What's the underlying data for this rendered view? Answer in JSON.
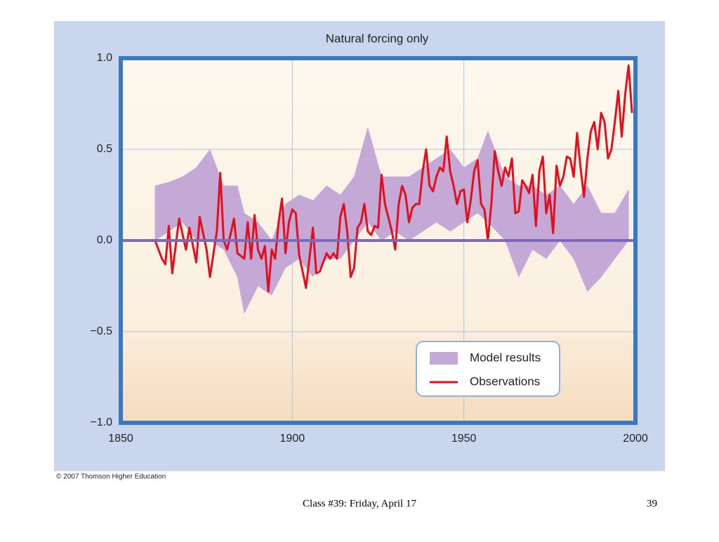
{
  "chart_data": {
    "type": "line",
    "title": "Natural forcing only",
    "xlim": [
      1850,
      2000
    ],
    "xticks": [
      1850,
      1900,
      1950,
      2000
    ],
    "ylim": [
      -1.0,
      1.0
    ],
    "yticks": [
      {
        "value": -1.0,
        "label": "−1.0"
      },
      {
        "value": -0.5,
        "label": "−0.5"
      },
      {
        "value": 0,
        "label": "0.0"
      },
      {
        "value": 0.5,
        "label": "0.5"
      },
      {
        "value": 1.0,
        "label": "1.0"
      }
    ],
    "grid": true,
    "legend": "lower right",
    "series": [
      {
        "name": "Model results",
        "color": "#c4a8d6",
        "x": [
          1860,
          1864,
          1868,
          1872,
          1876,
          1880,
          1884,
          1886,
          1890,
          1894,
          1898,
          1902,
          1906,
          1910,
          1914,
          1918,
          1922,
          1926,
          1930,
          1934,
          1938,
          1942,
          1946,
          1950,
          1954,
          1957,
          1962,
          1966,
          1970,
          1974,
          1978,
          1982,
          1986,
          1990,
          1994,
          1998
        ],
        "lower": [
          0.0,
          0.05,
          0.1,
          0.0,
          0.0,
          -0.05,
          -0.2,
          -0.4,
          -0.25,
          -0.3,
          -0.15,
          -0.1,
          -0.2,
          -0.1,
          -0.1,
          0.0,
          0.1,
          0.0,
          0.05,
          0.0,
          0.05,
          0.1,
          0.05,
          0.1,
          0.15,
          0.1,
          0.0,
          -0.2,
          -0.05,
          -0.1,
          0.0,
          -0.1,
          -0.28,
          -0.2,
          -0.1,
          0.0
        ],
        "upper": [
          0.3,
          0.32,
          0.35,
          0.4,
          0.5,
          0.3,
          0.3,
          0.15,
          0.1,
          0.0,
          0.2,
          0.25,
          0.22,
          0.3,
          0.25,
          0.35,
          0.62,
          0.35,
          0.35,
          0.35,
          0.4,
          0.45,
          0.5,
          0.4,
          0.45,
          0.6,
          0.35,
          0.3,
          0.3,
          0.25,
          0.3,
          0.2,
          0.3,
          0.15,
          0.15,
          0.28
        ]
      },
      {
        "name": "Observations",
        "color": "#e0101e",
        "x": [
          1860,
          1862,
          1863,
          1864,
          1865,
          1867,
          1869,
          1870,
          1872,
          1873,
          1875,
          1876,
          1878,
          1879,
          1880,
          1881,
          1883,
          1884,
          1886,
          1887,
          1888,
          1889,
          1890,
          1891,
          1892,
          1893,
          1894,
          1895,
          1896,
          1897,
          1898,
          1899,
          1900,
          1901,
          1902,
          1904,
          1906,
          1907,
          1908,
          1910,
          1911,
          1912,
          1913,
          1914,
          1915,
          1916,
          1917,
          1918,
          1919,
          1920,
          1921,
          1922,
          1923,
          1924,
          1925,
          1926,
          1927,
          1929,
          1930,
          1931,
          1932,
          1933,
          1934,
          1935,
          1936,
          1937,
          1938,
          1939,
          1940,
          1941,
          1942,
          1943,
          1944,
          1945,
          1946,
          1947,
          1948,
          1949,
          1950,
          1951,
          1952,
          1953,
          1954,
          1955,
          1956,
          1957,
          1958,
          1959,
          1960,
          1961,
          1962,
          1963,
          1964,
          1965,
          1966,
          1967,
          1968,
          1969,
          1970,
          1971,
          1972,
          1973,
          1974,
          1975,
          1976,
          1977,
          1978,
          1979,
          1980,
          1981,
          1982,
          1983,
          1984,
          1985,
          1986,
          1987,
          1988,
          1989,
          1990,
          1991,
          1992,
          1993,
          1994,
          1995,
          1996,
          1997,
          1998,
          1999
        ],
        "values": [
          0,
          -0.1,
          -0.13,
          0.08,
          -0.18,
          0.12,
          -0.05,
          0.07,
          -0.12,
          0.13,
          -0.05,
          -0.2,
          0.05,
          0.37,
          0.0,
          -0.05,
          0.12,
          -0.07,
          -0.1,
          0.1,
          -0.1,
          0.14,
          -0.05,
          -0.1,
          -0.03,
          -0.28,
          -0.05,
          -0.1,
          0.1,
          0.23,
          -0.07,
          0.1,
          0.17,
          0.15,
          -0.08,
          -0.26,
          0.07,
          -0.18,
          -0.17,
          -0.07,
          -0.1,
          -0.07,
          -0.1,
          0.13,
          0.2,
          0.05,
          -0.2,
          -0.15,
          0.07,
          0.1,
          0.2,
          0.05,
          0.03,
          0.08,
          0.07,
          0.36,
          0.2,
          0.05,
          -0.05,
          0.2,
          0.3,
          0.25,
          0.1,
          0.18,
          0.2,
          0.2,
          0.38,
          0.5,
          0.3,
          0.27,
          0.35,
          0.4,
          0.38,
          0.57,
          0.38,
          0.3,
          0.2,
          0.27,
          0.28,
          0.1,
          0.22,
          0.38,
          0.44,
          0.2,
          0.17,
          0.0,
          0.2,
          0.49,
          0.38,
          0.3,
          0.4,
          0.35,
          0.45,
          0.15,
          0.16,
          0.33,
          0.3,
          0.26,
          0.36,
          0.08,
          0.38,
          0.46,
          0.15,
          0.25,
          0.04,
          0.41,
          0.3,
          0.35,
          0.46,
          0.45,
          0.35,
          0.59,
          0.4,
          0.24,
          0.45,
          0.6,
          0.65,
          0.5,
          0.7,
          0.65,
          0.45,
          0.5,
          0.65,
          0.82,
          0.57,
          0.8,
          0.96,
          0.7
        ]
      }
    ]
  },
  "credit": "© 2007 Thomson Higher Education",
  "footer": "Class #39: Friday, April 17",
  "page_number": "39"
}
